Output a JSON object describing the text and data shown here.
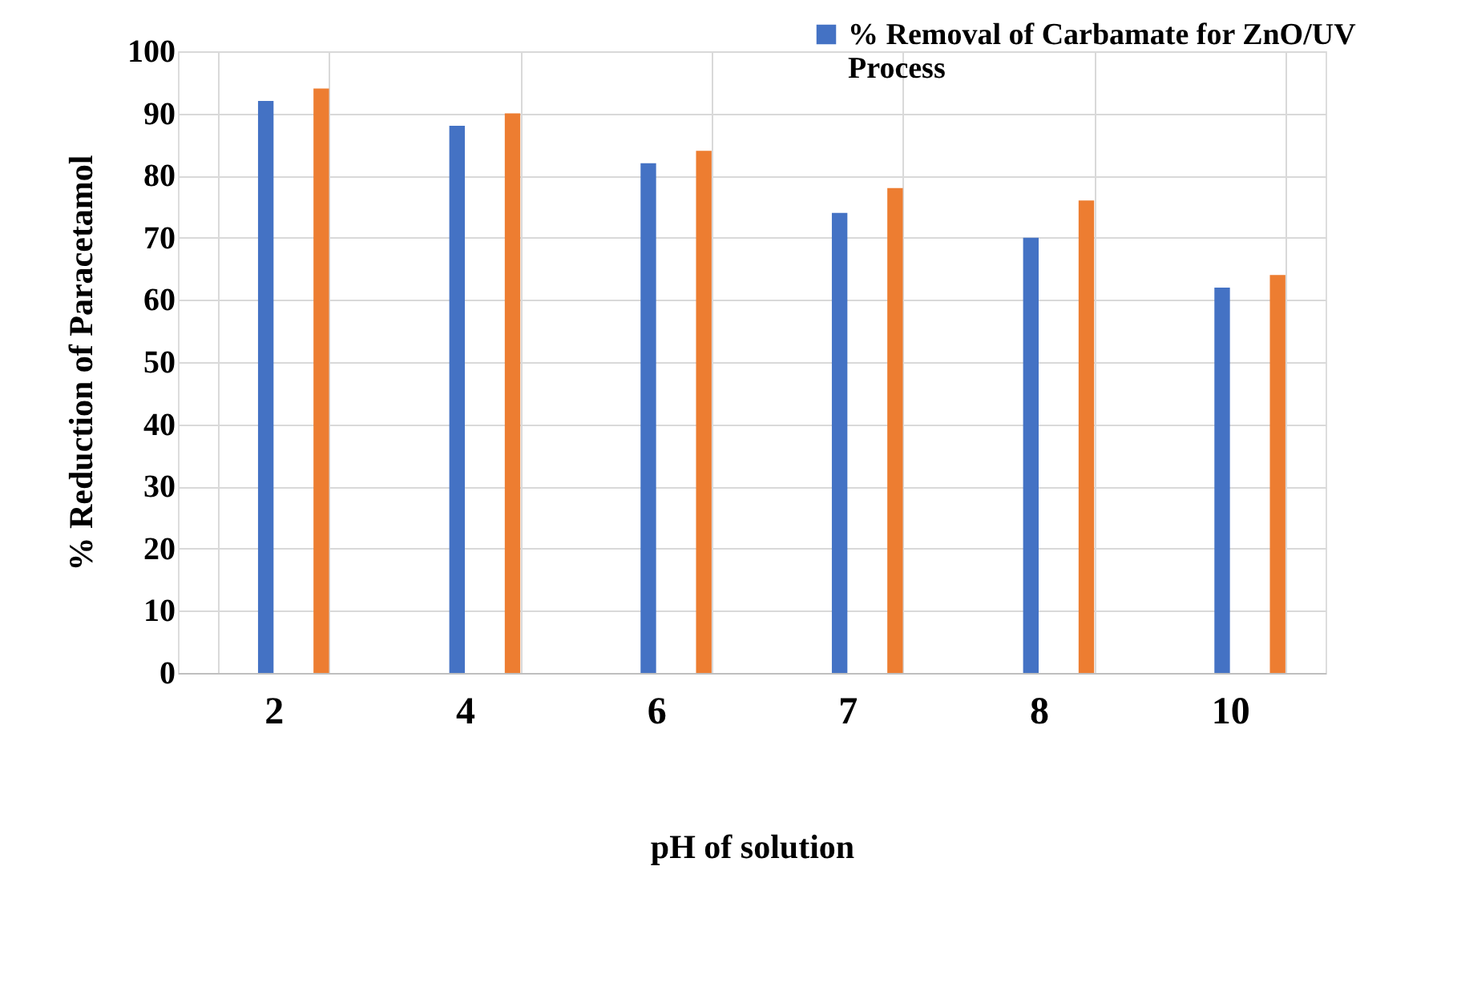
{
  "chart_data": {
    "type": "bar",
    "xlabel": "pH of solution",
    "ylabel": "% Reduction of Paracetamol",
    "categories": [
      "2",
      "4",
      "6",
      "7",
      "8",
      "10"
    ],
    "series": [
      {
        "name": "% Removal of Carbamate for ZnO/UV Process",
        "color": "#4472c4",
        "values": [
          92,
          88,
          82,
          74,
          70,
          62
        ]
      },
      {
        "color": "#ed7d31",
        "values": [
          94,
          90,
          84,
          78,
          76,
          64
        ]
      }
    ],
    "ylim": [
      0,
      100
    ],
    "yticks": [
      0,
      10,
      20,
      30,
      40,
      50,
      60,
      70,
      80,
      90,
      100
    ],
    "grid": true,
    "legend": "top right"
  }
}
